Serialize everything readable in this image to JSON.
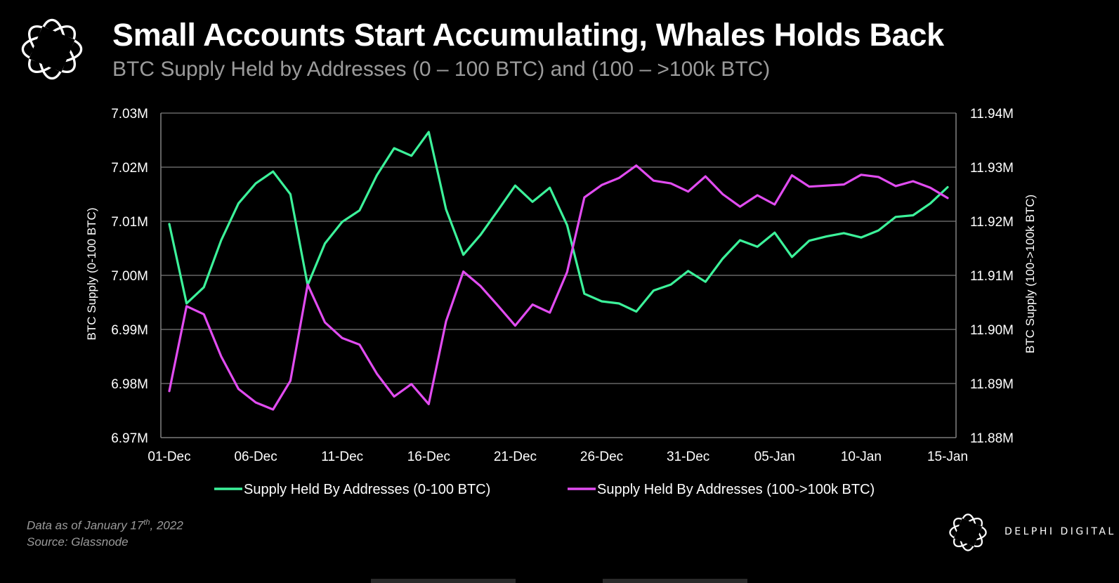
{
  "header": {
    "title": "Small Accounts Start Accumulating, Whales Holds Back",
    "subtitle": "BTC Supply Held by Addresses (0 – 100 BTC) and (100 – >100k BTC)"
  },
  "footer": {
    "note_prefix": "Data as of January 17",
    "note_sup": "th",
    "note_suffix": ", 2022",
    "source": "Source: Glassnode",
    "brand": "DELPHI DIGITAL"
  },
  "colors": {
    "background": "#000000",
    "series_small": "#3cf29a",
    "series_large": "#e14cf0",
    "grid": "#7a7a7a",
    "subtitle": "#9b9b9b"
  },
  "chart_data": {
    "type": "line",
    "x": [
      "01-Dec",
      "02-Dec",
      "03-Dec",
      "04-Dec",
      "05-Dec",
      "06-Dec",
      "07-Dec",
      "08-Dec",
      "09-Dec",
      "10-Dec",
      "11-Dec",
      "12-Dec",
      "13-Dec",
      "14-Dec",
      "15-Dec",
      "16-Dec",
      "17-Dec",
      "18-Dec",
      "19-Dec",
      "20-Dec",
      "21-Dec",
      "22-Dec",
      "23-Dec",
      "24-Dec",
      "25-Dec",
      "26-Dec",
      "27-Dec",
      "28-Dec",
      "29-Dec",
      "30-Dec",
      "31-Dec",
      "01-Jan",
      "02-Jan",
      "03-Jan",
      "04-Jan",
      "05-Jan",
      "06-Jan",
      "07-Jan",
      "08-Jan",
      "09-Jan",
      "10-Jan",
      "11-Jan",
      "12-Jan",
      "13-Jan",
      "14-Jan",
      "15-Jan"
    ],
    "x_tick_labels": [
      "01-Dec",
      "06-Dec",
      "11-Dec",
      "16-Dec",
      "21-Dec",
      "26-Dec",
      "31-Dec",
      "05-Jan",
      "10-Jan",
      "15-Jan"
    ],
    "y_left": {
      "label": "BTC Supply (0-100 BTC)",
      "range": [
        6.97,
        7.03
      ],
      "ticks": [
        "7.03M",
        "7.02M",
        "7.01M",
        "7.00M",
        "6.99M",
        "6.98M",
        "6.97M"
      ]
    },
    "y_right": {
      "label": "BTC Supply (100->100k BTC)",
      "range": [
        11.88,
        11.94
      ],
      "ticks": [
        "11.94M",
        "11.93M",
        "11.92M",
        "11.91M",
        "11.90M",
        "11.89M",
        "11.88M"
      ]
    },
    "grid": true,
    "legend_position": "bottom",
    "series": [
      {
        "name": "Supply Held By Addresses (0-100 BTC)",
        "axis": "left",
        "unit": "M BTC",
        "values": [
          7.0095,
          6.9948,
          6.9978,
          7.0065,
          7.0133,
          7.017,
          7.0192,
          7.015,
          6.9982,
          7.0059,
          7.0099,
          7.012,
          7.0185,
          7.0235,
          7.0221,
          7.0265,
          7.0122,
          7.0038,
          7.0075,
          7.012,
          7.0166,
          7.0136,
          7.0162,
          7.0093,
          6.9966,
          6.9952,
          6.9948,
          6.9933,
          6.9972,
          6.9983,
          7.0008,
          6.9988,
          7.0031,
          7.0065,
          7.0053,
          7.0079,
          7.0034,
          7.0064,
          7.0072,
          7.0078,
          7.007,
          7.0083,
          7.0108,
          7.0111,
          7.0133,
          7.0163
        ]
      },
      {
        "name": "Supply Held By Addresses (100->100k BTC)",
        "axis": "right",
        "unit": "M BTC",
        "values": [
          11.8886,
          11.9043,
          11.9028,
          11.895,
          11.889,
          11.8865,
          11.8852,
          11.8905,
          11.9083,
          11.9013,
          11.8984,
          11.8972,
          11.8918,
          11.8876,
          11.8899,
          11.8862,
          11.9015,
          11.9107,
          11.908,
          11.9044,
          11.9007,
          11.9046,
          11.9031,
          11.9106,
          11.9244,
          11.9267,
          11.928,
          11.9303,
          11.9275,
          11.927,
          11.9255,
          11.9283,
          11.925,
          11.9227,
          11.9248,
          11.9231,
          11.9285,
          11.9264,
          11.9266,
          11.9268,
          11.9286,
          11.9282,
          11.9265,
          11.9274,
          11.9262,
          11.9243
        ]
      }
    ]
  }
}
